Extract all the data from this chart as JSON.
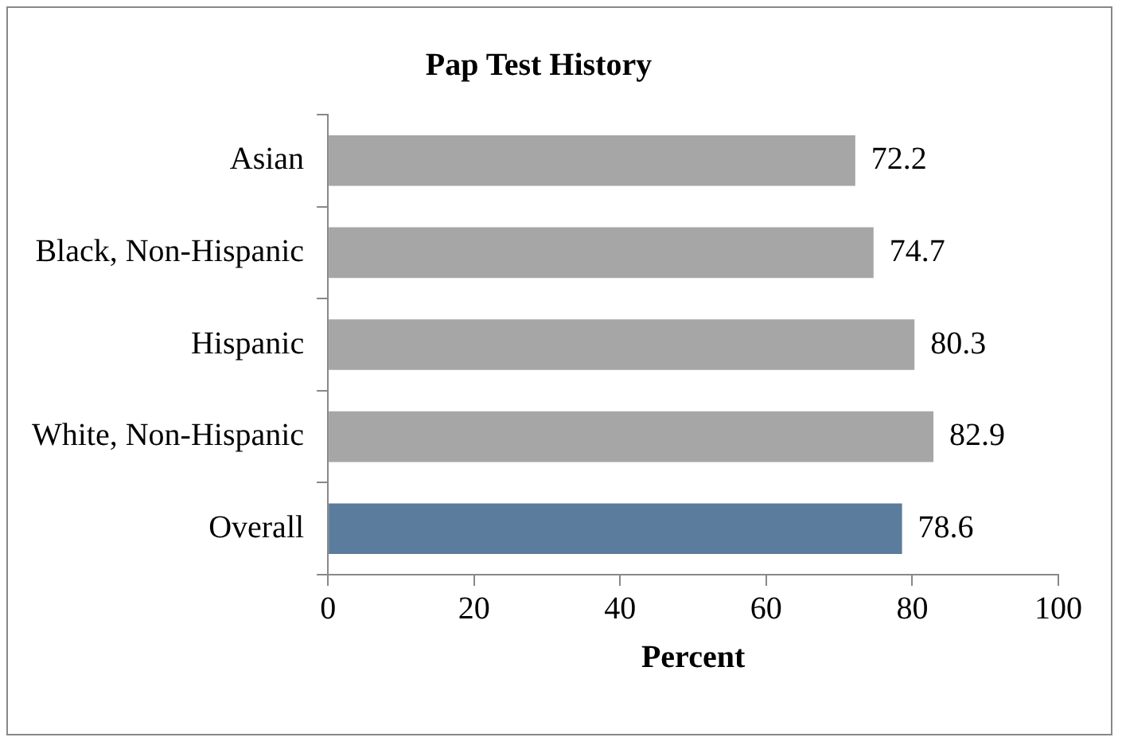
{
  "chart_data": {
    "type": "bar",
    "orientation": "horizontal",
    "title": "Pap Test History",
    "xlabel": "Percent",
    "categories": [
      "Asian",
      "Black, Non-Hispanic",
      "Hispanic",
      "White, Non-Hispanic",
      "Overall"
    ],
    "values": [
      72.2,
      74.7,
      80.3,
      82.9,
      78.6
    ],
    "colors": [
      "#a6a6a6",
      "#a6a6a6",
      "#a6a6a6",
      "#a6a6a6",
      "#5b7c9c"
    ],
    "xlim": [
      0,
      100
    ],
    "xticks": [
      0,
      20,
      40,
      60,
      80,
      100
    ],
    "grid": false,
    "legend": false,
    "data_labels": true
  }
}
